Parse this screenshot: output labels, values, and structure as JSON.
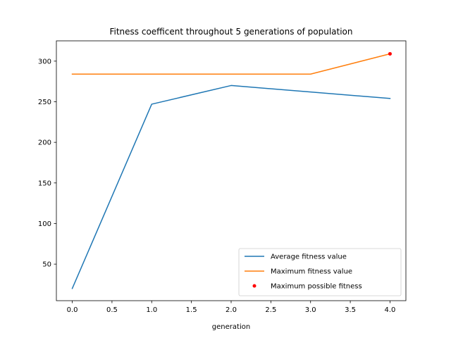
{
  "chart_data": {
    "type": "line",
    "title": "Fitness coefficent throughout 5 generations of population",
    "xlabel": "generation",
    "ylabel": "",
    "xlim": [
      -0.2,
      4.2
    ],
    "ylim": [
      5,
      325
    ],
    "xticks": [
      0.0,
      0.5,
      1.0,
      1.5,
      2.0,
      2.5,
      3.0,
      3.5,
      4.0
    ],
    "xtick_labels": [
      "0.0",
      "0.5",
      "1.0",
      "1.5",
      "2.0",
      "2.5",
      "3.0",
      "3.5",
      "4.0"
    ],
    "yticks": [
      50,
      100,
      150,
      200,
      250,
      300
    ],
    "ytick_labels": [
      "50",
      "100",
      "150",
      "200",
      "250",
      "300"
    ],
    "grid": false,
    "legend_position": "lower-right",
    "series": [
      {
        "name": "Average fitness value",
        "kind": "line",
        "color": "#1f77b4",
        "x": [
          0,
          1,
          2,
          3,
          4
        ],
        "y": [
          20,
          247,
          270,
          262,
          254
        ]
      },
      {
        "name": "Maximum fitness value",
        "kind": "line",
        "color": "#ff7f0e",
        "x": [
          0,
          1,
          2,
          3,
          4
        ],
        "y": [
          284,
          284,
          284,
          284,
          309
        ]
      },
      {
        "name": "Maximum possible fitness",
        "kind": "scatter",
        "color": "#ff0000",
        "x": [
          4
        ],
        "y": [
          309
        ]
      }
    ]
  }
}
